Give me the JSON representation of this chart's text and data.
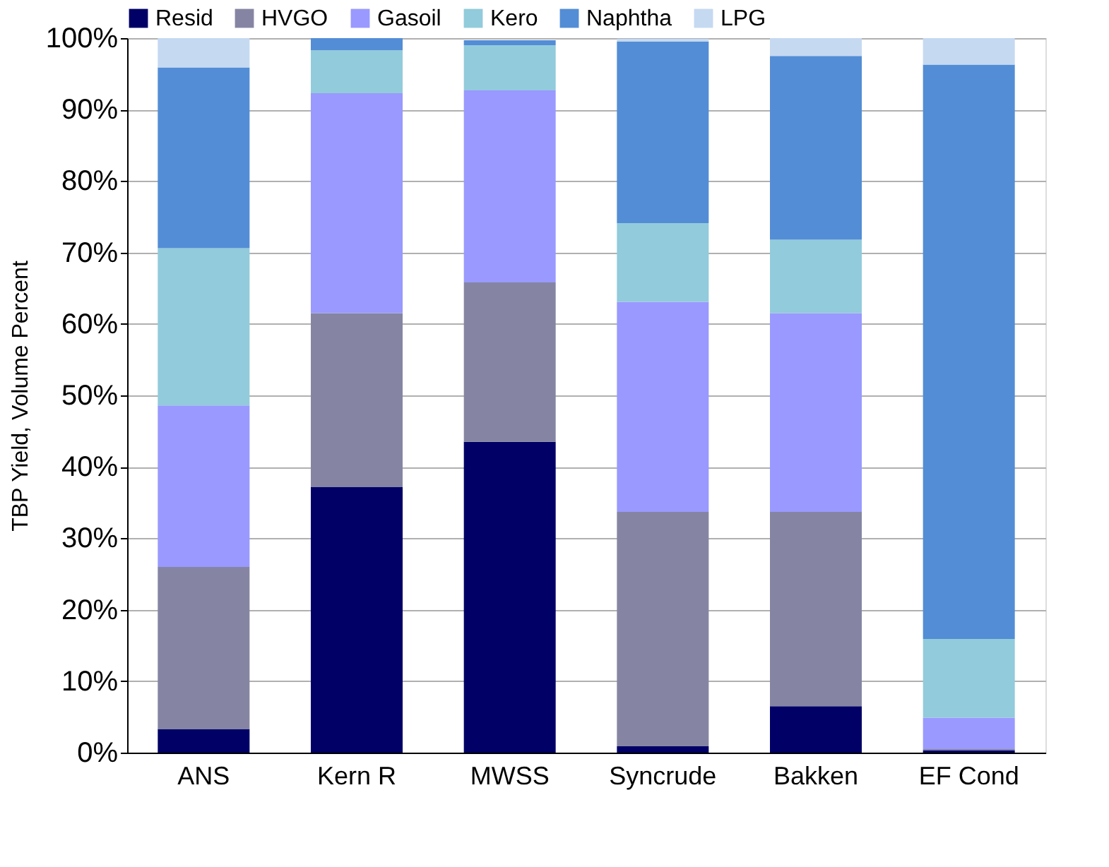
{
  "chart_data": {
    "type": "bar",
    "stacked": true,
    "ylabel": "TBP Yield, Volume Percent",
    "categories": [
      "ANS",
      "Kern R",
      "MWSS",
      "Syncrude",
      "Bakken",
      "EF Cond"
    ],
    "series": [
      {
        "name": "Resid",
        "color": "#000066",
        "values": [
          3.3,
          37.2,
          43.5,
          0.9,
          6.5,
          0.3
        ]
      },
      {
        "name": "HVGO",
        "color": "#8585a3",
        "values": [
          22.7,
          24.3,
          22.3,
          32.8,
          27.2,
          0.2
        ]
      },
      {
        "name": "Gasoil",
        "color": "#9999ff",
        "values": [
          22.6,
          30.8,
          26.9,
          29.4,
          27.8,
          4.4
        ]
      },
      {
        "name": "Kero",
        "color": "#92cbdb",
        "values": [
          22.0,
          6.0,
          6.3,
          11.0,
          10.3,
          11.0
        ]
      },
      {
        "name": "Naphtha",
        "color": "#538dd5",
        "values": [
          25.3,
          1.7,
          0.7,
          25.4,
          25.7,
          80.4
        ]
      },
      {
        "name": "LPG",
        "color": "#c5d9f1",
        "values": [
          4.1,
          0,
          0,
          0.4,
          2.5,
          3.7
        ]
      }
    ],
    "ylim": [
      0,
      100
    ],
    "yticks": [
      {
        "value": 0,
        "label": "0%"
      },
      {
        "value": 10,
        "label": "10%"
      },
      {
        "value": 20,
        "label": "20%"
      },
      {
        "value": 30,
        "label": "30%"
      },
      {
        "value": 40,
        "label": "40%"
      },
      {
        "value": 50,
        "label": "50%"
      },
      {
        "value": 60,
        "label": "60%"
      },
      {
        "value": 70,
        "label": "70%"
      },
      {
        "value": 80,
        "label": "80%"
      },
      {
        "value": 90,
        "label": "90%"
      },
      {
        "value": 100,
        "label": "100%"
      }
    ],
    "grid": "y",
    "legend": "top"
  }
}
